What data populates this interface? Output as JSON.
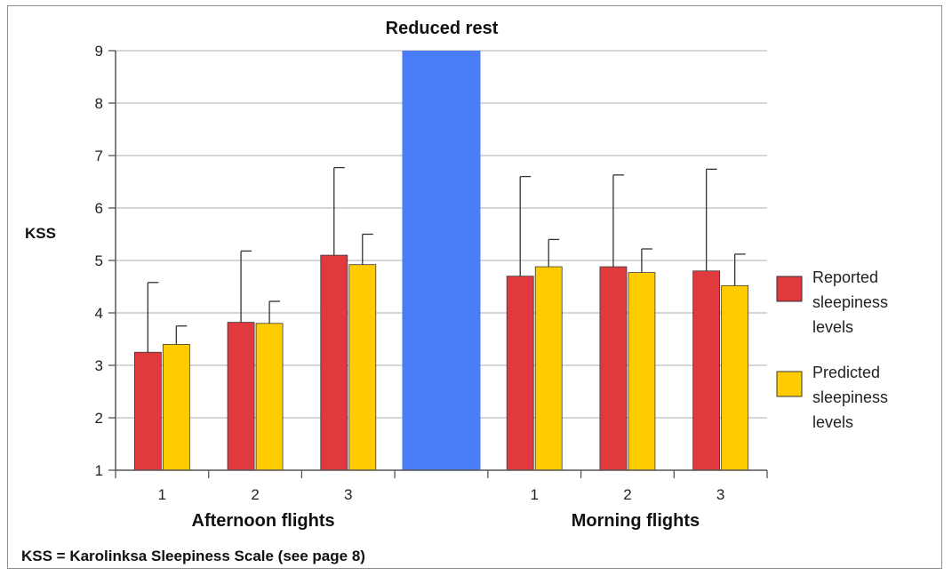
{
  "chart_data": {
    "type": "bar",
    "title": "Reduced rest",
    "ylabel": "KSS",
    "ylim": [
      1,
      9
    ],
    "yticks": [
      "1",
      "2",
      "3",
      "4",
      "5",
      "6",
      "7",
      "8",
      "9"
    ],
    "grid": true,
    "legend_position": "right",
    "groups": [
      {
        "label": "Afternoon flights",
        "categories": [
          "1",
          "2",
          "3"
        ]
      },
      {
        "label": "Morning flights",
        "categories": [
          "1",
          "2",
          "3"
        ]
      }
    ],
    "series": [
      {
        "name": "Reported sleepiness levels",
        "name_lines": [
          "Reported",
          "sleepiness",
          "levels"
        ],
        "color": "#e0393e",
        "values": [
          3.25,
          3.82,
          5.1,
          4.7,
          4.88,
          4.8
        ],
        "error_upper": [
          4.58,
          5.18,
          6.77,
          6.6,
          6.63,
          6.74
        ]
      },
      {
        "name": "Predicted sleepiness levels",
        "name_lines": [
          "Predicted",
          "sleepiness",
          "levels"
        ],
        "color": "#ffcc00",
        "values": [
          3.4,
          3.8,
          4.92,
          4.88,
          4.77,
          4.52
        ],
        "error_upper": [
          3.75,
          4.22,
          5.5,
          5.4,
          5.22,
          5.12
        ]
      }
    ],
    "separator": {
      "color": "#4a7cf7"
    },
    "footnote": "KSS = Karolinksa Sleepiness Scale (see page 8)"
  }
}
